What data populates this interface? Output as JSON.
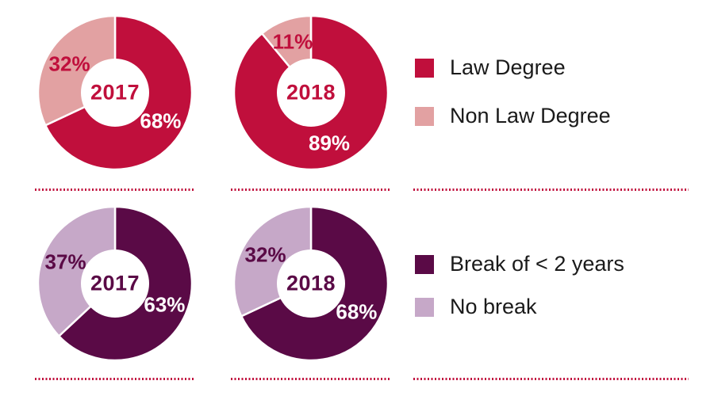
{
  "colors": {
    "law_degree": "#C00F3C",
    "non_law_degree": "#E2A1A2",
    "break_lt_2_years": "#5A0A46",
    "no_break": "#C6A8C8",
    "dotted_line": "#C00F3C",
    "legend_text": "#1A1A1A",
    "donut_hole": "#FFFFFF"
  },
  "chart_data": [
    {
      "type": "pie",
      "subtype": "donut",
      "center_label": "2017",
      "center_label_color": "#C00F3C",
      "group": "degree",
      "slices": [
        {
          "label": "Law Degree",
          "value": 68,
          "pct_label": "68%",
          "color": "#C00F3C",
          "label_color": "#FFFFFF"
        },
        {
          "label": "Non Law Degree",
          "value": 32,
          "pct_label": "32%",
          "color": "#E2A1A2",
          "label_color": "#C00F3C"
        }
      ]
    },
    {
      "type": "pie",
      "subtype": "donut",
      "center_label": "2018",
      "center_label_color": "#C00F3C",
      "group": "degree",
      "slices": [
        {
          "label": "Law Degree",
          "value": 89,
          "pct_label": "89%",
          "color": "#C00F3C",
          "label_color": "#FFFFFF"
        },
        {
          "label": "Non Law Degree",
          "value": 11,
          "pct_label": "11%",
          "color": "#E2A1A2",
          "label_color": "#C00F3C"
        }
      ]
    },
    {
      "type": "pie",
      "subtype": "donut",
      "center_label": "2017",
      "center_label_color": "#5A0A46",
      "group": "break",
      "slices": [
        {
          "label": "Break of < 2 years",
          "value": 63,
          "pct_label": "63%",
          "color": "#5A0A46",
          "label_color": "#FFFFFF"
        },
        {
          "label": "No break",
          "value": 37,
          "pct_label": "37%",
          "color": "#C6A8C8",
          "label_color": "#5A0A46"
        }
      ]
    },
    {
      "type": "pie",
      "subtype": "donut",
      "center_label": "2018",
      "center_label_color": "#5A0A46",
      "group": "break",
      "slices": [
        {
          "label": "Break of < 2 years",
          "value": 68,
          "pct_label": "68%",
          "color": "#5A0A46",
          "label_color": "#FFFFFF"
        },
        {
          "label": "No break",
          "value": 32,
          "pct_label": "32%",
          "color": "#C6A8C8",
          "label_color": "#5A0A46"
        }
      ]
    }
  ],
  "legends": [
    {
      "items": [
        {
          "label": "Law Degree",
          "color": "#C00F3C"
        },
        {
          "label": "Non Law Degree",
          "color": "#E2A1A2"
        }
      ]
    },
    {
      "items": [
        {
          "label": "Break of < 2 years",
          "color": "#5A0A46"
        },
        {
          "label": "No break",
          "color": "#C6A8C8"
        }
      ]
    }
  ]
}
